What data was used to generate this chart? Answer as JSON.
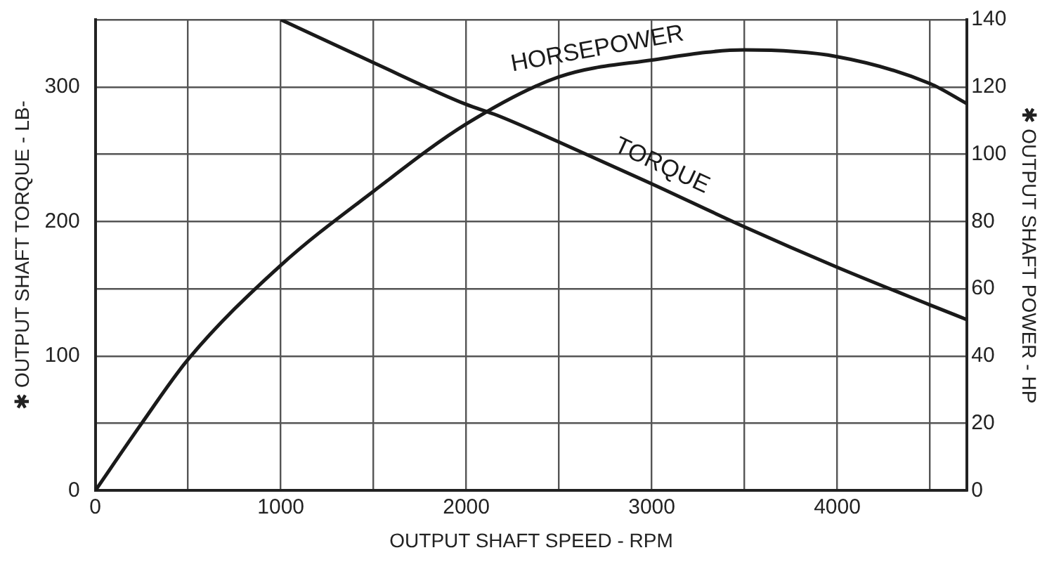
{
  "chart_data": {
    "type": "line",
    "xlabel": "OUTPUT SHAFT SPEED - RPM",
    "ylabel": "✱ OUTPUT SHAFT TORQUE - LB-",
    "y2label": "✱ OUTPUT SHAFT POWER - HP",
    "xlim": [
      0,
      4700
    ],
    "xticks": [
      0,
      {
        "value": 500,
        "label": null
      },
      1000,
      {
        "value": 1500,
        "label": null
      },
      2000,
      {
        "value": 2500,
        "label": null
      },
      3000,
      {
        "value": 3500,
        "label": null
      },
      4000,
      {
        "value": 4500,
        "label": null
      }
    ],
    "ylim": [
      0,
      350
    ],
    "yticks": [
      0,
      100,
      200,
      300
    ],
    "y2lim": [
      0,
      140
    ],
    "y2ticks": [
      0,
      20,
      40,
      60,
      80,
      100,
      120,
      140
    ],
    "grid": true,
    "legend": false,
    "marker": "none",
    "line_style": "solid",
    "series": [
      {
        "name": "HORSEPOWER",
        "color": "#1a1a1a",
        "axis": "y2",
        "x": [
          0,
          250,
          500,
          1000,
          1500,
          2000,
          2500,
          3000,
          3500,
          4000,
          4500,
          4700
        ],
        "values": [
          0,
          20,
          39,
          67,
          89,
          109,
          123,
          128,
          131,
          129,
          121,
          115
        ]
      },
      {
        "name": "TORQUE",
        "color": "#1a1a1a",
        "axis": "y",
        "x": [
          1000,
          1500,
          2000,
          2165,
          2500,
          3000,
          3500,
          4000,
          4500,
          4700
        ],
        "values": [
          350,
          318,
          287,
          279,
          259,
          228,
          196,
          166,
          138,
          127
        ]
      }
    ]
  }
}
